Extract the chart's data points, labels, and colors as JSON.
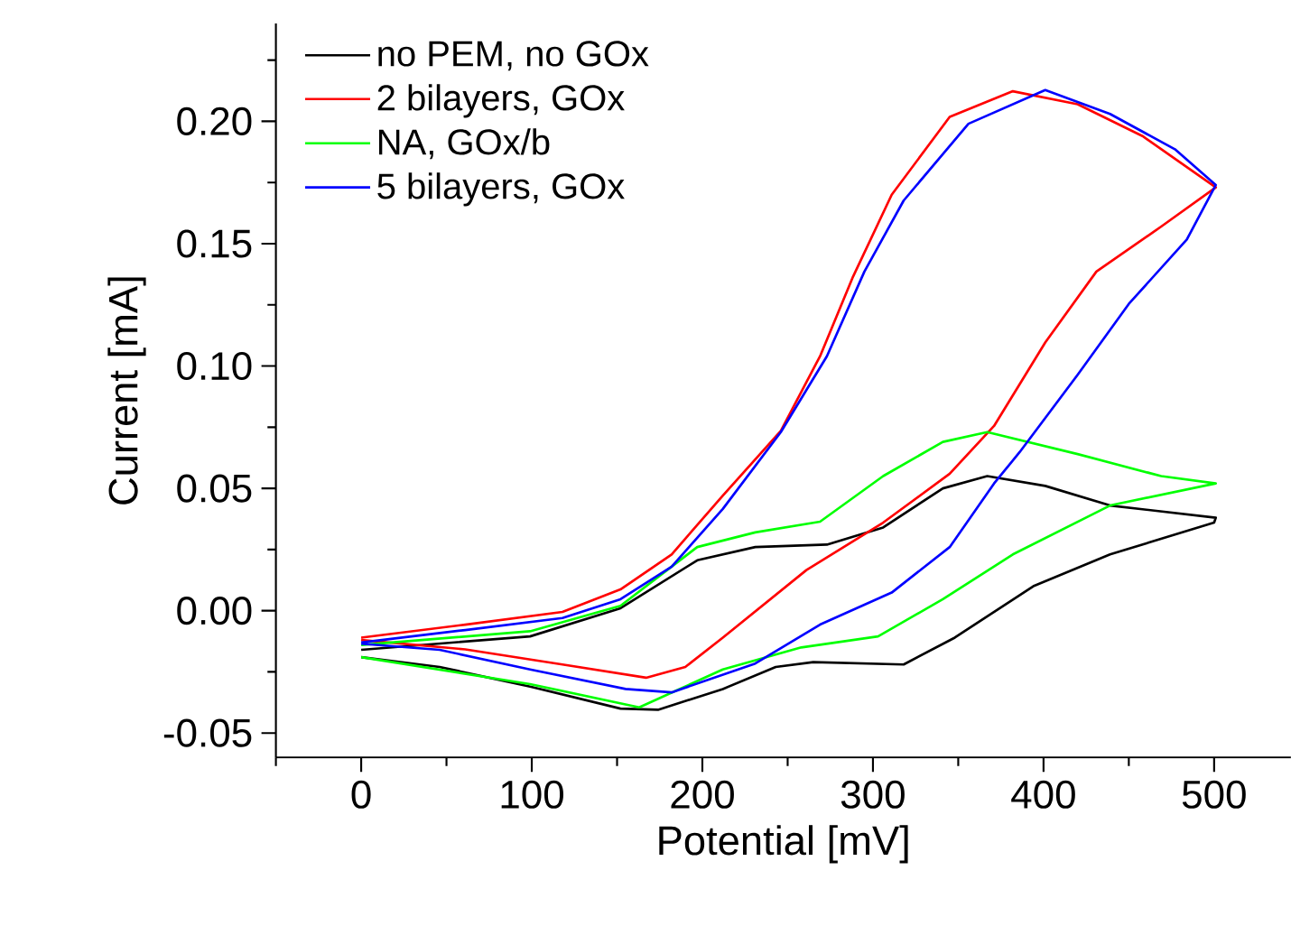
{
  "chart_data": {
    "type": "line",
    "xlabel": "Potential [mV]",
    "ylabel": "Current [mA]",
    "legend": "top left",
    "grid": false,
    "line_style": "solid",
    "marker": "none",
    "xlim": [
      -50,
      545
    ],
    "ylim": [
      -0.06,
      0.24
    ],
    "xticks": [
      {
        "value": -50,
        "label": null
      },
      0,
      {
        "value": 50,
        "label": null
      },
      100,
      {
        "value": 150,
        "label": null
      },
      200,
      {
        "value": 250,
        "label": null
      },
      300,
      {
        "value": 350,
        "label": null
      },
      400,
      {
        "value": 450,
        "label": null
      },
      500
    ],
    "yticks": [
      {
        "value": -0.05,
        "label": "-0.05"
      },
      {
        "value": -0.025,
        "label": null
      },
      {
        "value": 0,
        "label": "0.00"
      },
      {
        "value": 0.025,
        "label": null
      },
      {
        "value": 0.05,
        "label": "0.05"
      },
      {
        "value": 0.075,
        "label": null
      },
      {
        "value": 0.1,
        "label": "0.10"
      },
      {
        "value": 0.125,
        "label": null
      },
      {
        "value": 0.15,
        "label": "0.15"
      },
      {
        "value": 0.175,
        "label": null
      },
      {
        "value": 0.2,
        "label": "0.20"
      },
      {
        "value": 0.225,
        "label": null
      }
    ],
    "series": [
      {
        "name": "no PEM, no GOx",
        "color": "#000000",
        "x": [
          0,
          99,
          152,
          197,
          231,
          273,
          306,
          341,
          367,
          401,
          439,
          501,
          500,
          439,
          394,
          348,
          318,
          265,
          243,
          212,
          174,
          152,
          99,
          46,
          0
        ],
        "values": [
          -0.016,
          -0.0105,
          0.001,
          0.0206,
          0.026,
          0.027,
          0.034,
          0.05,
          0.055,
          0.051,
          0.043,
          0.038,
          0.036,
          0.023,
          0.01,
          -0.011,
          -0.022,
          -0.021,
          -0.023,
          -0.032,
          -0.0405,
          -0.04,
          -0.031,
          -0.023,
          -0.019
        ]
      },
      {
        "name": "2 bilayers, GOx",
        "color": "#ff0000",
        "x": [
          0,
          61,
          118,
          152,
          182,
          212,
          246,
          269,
          288,
          311,
          345,
          382,
          420,
          458,
          501,
          469,
          431,
          401,
          371,
          345,
          306,
          261,
          212,
          190,
          167,
          118,
          61,
          0
        ],
        "values": [
          -0.011,
          -0.0057,
          -0.0005,
          0.0087,
          0.023,
          0.047,
          0.0735,
          0.104,
          0.136,
          0.17,
          0.2018,
          0.2123,
          0.207,
          0.194,
          0.173,
          0.157,
          0.1386,
          0.1096,
          0.0755,
          0.056,
          0.036,
          0.0166,
          -0.011,
          -0.023,
          -0.0274,
          -0.022,
          -0.0158,
          -0.012
        ]
      },
      {
        "name": "NA, GOx/b",
        "color": "#00ff00",
        "x": [
          0,
          99,
          152,
          197,
          231,
          269,
          306,
          341,
          367,
          420,
          469,
          501,
          439,
          382,
          341,
          303,
          258,
          212,
          163,
          99,
          0
        ],
        "values": [
          -0.014,
          -0.0084,
          0.002,
          0.026,
          0.032,
          0.0364,
          0.055,
          0.069,
          0.073,
          0.064,
          0.055,
          0.052,
          0.043,
          0.023,
          0.0047,
          -0.0105,
          -0.015,
          -0.024,
          -0.0395,
          -0.03,
          -0.019
        ]
      },
      {
        "name": "5 bilayers, GOx",
        "color": "#0000ff",
        "x": [
          0,
          61,
          118,
          152,
          182,
          212,
          246,
          273,
          295,
          318,
          356,
          401,
          439,
          477,
          501,
          484,
          450,
          420,
          386,
          371,
          345,
          311,
          269,
          231,
          182,
          155,
          99,
          46,
          0
        ],
        "values": [
          -0.013,
          -0.0079,
          -0.003,
          0.0047,
          0.018,
          0.0416,
          0.073,
          0.104,
          0.1386,
          0.1676,
          0.199,
          0.2128,
          0.203,
          0.1886,
          0.174,
          0.1517,
          0.1254,
          0.0964,
          0.0648,
          0.052,
          0.026,
          0.0074,
          -0.0057,
          -0.0216,
          -0.0334,
          -0.032,
          -0.024,
          -0.016,
          -0.0135
        ]
      }
    ]
  }
}
